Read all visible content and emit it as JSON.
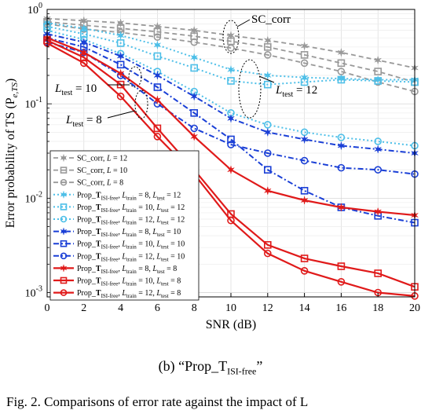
{
  "chart_data": {
    "type": "line",
    "xlabel": "SNR (dB)",
    "ylabel_main": "Error probability of TS (P",
    "ylabel_sub": "e,TS",
    "ylabel_end": ")",
    "x": [
      0,
      2,
      4,
      6,
      8,
      10,
      12,
      14,
      16,
      18,
      20
    ],
    "xlim": [
      0,
      20
    ],
    "ylim": [
      0.0009,
      1
    ],
    "yscale": "log",
    "xticks": [
      0,
      2,
      4,
      6,
      8,
      10,
      12,
      14,
      16,
      18,
      20
    ],
    "yticks": [
      {
        "value": 1,
        "base": "10",
        "exp": "0"
      },
      {
        "value": 0.1,
        "base": "10",
        "exp": "-1"
      },
      {
        "value": 0.01,
        "base": "10",
        "exp": "-2"
      },
      {
        "value": 0.001,
        "base": "10",
        "exp": "-3"
      }
    ],
    "series": [
      {
        "name": "SC_corr, L = 12",
        "color": "#999999",
        "dash": "6,4",
        "marker": "star",
        "width": 1.8,
        "values": [
          0.8,
          0.76,
          0.72,
          0.66,
          0.6,
          0.53,
          0.47,
          0.41,
          0.35,
          0.29,
          0.24
        ]
      },
      {
        "name": "SC_corr, L = 10",
        "color": "#999999",
        "dash": "6,4",
        "marker": "square",
        "width": 1.8,
        "values": [
          0.74,
          0.68,
          0.63,
          0.58,
          0.52,
          0.46,
          0.4,
          0.33,
          0.27,
          0.22,
          0.17
        ]
      },
      {
        "name": "SC_corr, L = 8",
        "color": "#999999",
        "dash": "6,4",
        "marker": "circle",
        "width": 1.8,
        "values": [
          0.7,
          0.62,
          0.57,
          0.51,
          0.45,
          0.39,
          0.33,
          0.27,
          0.22,
          0.17,
          0.135
        ]
      },
      {
        "name": "Prop_T ISI-free, L train = 8, L test = 12",
        "color": "#4dbfe8",
        "dash": "2,3",
        "marker": "star",
        "width": 2,
        "values": [
          0.72,
          0.63,
          0.53,
          0.42,
          0.31,
          0.23,
          0.2,
          0.19,
          0.185,
          0.18,
          0.18
        ]
      },
      {
        "name": "Prop_T ISI-free, L train = 10, L test = 12",
        "color": "#4dbfe8",
        "dash": "2,3",
        "marker": "square",
        "width": 2,
        "values": [
          0.66,
          0.55,
          0.44,
          0.32,
          0.24,
          0.175,
          0.16,
          0.17,
          0.18,
          0.175,
          0.17
        ]
      },
      {
        "name": "Prop_T ISI-free, L train = 12, L test = 12",
        "color": "#4dbfe8",
        "dash": "2,3",
        "marker": "circle",
        "width": 2,
        "values": [
          0.6,
          0.48,
          0.34,
          0.22,
          0.135,
          0.08,
          0.06,
          0.05,
          0.044,
          0.04,
          0.036
        ]
      },
      {
        "name": "Prop_T ISI-free, L train = 8, L test = 10",
        "color": "#1a3fd6",
        "dash": "7,3,2,3",
        "marker": "star",
        "width": 2,
        "values": [
          0.55,
          0.45,
          0.32,
          0.2,
          0.12,
          0.07,
          0.05,
          0.042,
          0.036,
          0.033,
          0.03
        ]
      },
      {
        "name": "Prop_T ISI-free, L train = 10, L test = 10",
        "color": "#1a3fd6",
        "dash": "7,3,2,3",
        "marker": "square",
        "width": 2,
        "values": [
          0.5,
          0.4,
          0.26,
          0.15,
          0.08,
          0.042,
          0.02,
          0.012,
          0.008,
          0.0065,
          0.0055
        ]
      },
      {
        "name": "Prop_T ISI-free, L train = 12, L test = 10",
        "color": "#1a3fd6",
        "dash": "7,3,2,3",
        "marker": "circle",
        "width": 2,
        "values": [
          0.45,
          0.35,
          0.2,
          0.1,
          0.055,
          0.037,
          0.03,
          0.025,
          0.021,
          0.02,
          0.018
        ]
      },
      {
        "name": "Prop_T ISI-free, L train = 8, L test = 8",
        "color": "#e01a1a",
        "dash": "",
        "marker": "star",
        "width": 2.2,
        "values": [
          0.5,
          0.35,
          0.21,
          0.11,
          0.045,
          0.02,
          0.012,
          0.0095,
          0.008,
          0.0072,
          0.0066
        ]
      },
      {
        "name": "Prop_T ISI-free, L train = 10, L test = 8",
        "color": "#e01a1a",
        "dash": "",
        "marker": "square",
        "width": 2.2,
        "values": [
          0.47,
          0.31,
          0.16,
          0.055,
          0.02,
          0.0068,
          0.0032,
          0.0023,
          0.0019,
          0.0016,
          0.00115
        ]
      },
      {
        "name": "Prop_T ISI-free, L train = 12, L test = 8",
        "color": "#e01a1a",
        "dash": "",
        "marker": "circle",
        "width": 2.2,
        "values": [
          0.44,
          0.27,
          0.12,
          0.045,
          0.018,
          0.0058,
          0.0026,
          0.0017,
          0.0013,
          0.001,
          0.00092
        ]
      }
    ],
    "legend": {
      "placement": "bottom-left",
      "entries": [
        {
          "pre": "SC_corr, ",
          "L": "L",
          "mid": " = 12"
        },
        {
          "pre": "SC_corr, ",
          "L": "L",
          "mid": " = 10"
        },
        {
          "pre": "SC_corr, ",
          "L": "L",
          "mid": " = 8"
        },
        {
          "pre": "Prop_",
          "bold": "T",
          "sub1": "ISI-free",
          "a": ", ",
          "L1": "L",
          "s1": "train",
          "v1": " = 8, ",
          "L2": "L",
          "s2": "test",
          "v2": " = 12"
        },
        {
          "pre": "Prop_",
          "bold": "T",
          "sub1": "ISI-free",
          "a": ", ",
          "L1": "L",
          "s1": "train",
          "v1": " = 10, ",
          "L2": "L",
          "s2": "test",
          "v2": " = 12"
        },
        {
          "pre": "Prop_",
          "bold": "T",
          "sub1": "ISI-free",
          "a": ", ",
          "L1": "L",
          "s1": "train",
          "v1": " = 12, ",
          "L2": "L",
          "s2": "test",
          "v2": " = 12"
        },
        {
          "pre": "Prop_",
          "bold": "T",
          "sub1": "ISI-free",
          "a": ", ",
          "L1": "L",
          "s1": "train",
          "v1": " = 8, ",
          "L2": "L",
          "s2": "test",
          "v2": " = 10"
        },
        {
          "pre": "Prop_",
          "bold": "T",
          "sub1": "ISI-free",
          "a": ", ",
          "L1": "L",
          "s1": "train",
          "v1": " = 10, ",
          "L2": "L",
          "s2": "test",
          "v2": " = 10"
        },
        {
          "pre": "Prop_",
          "bold": "T",
          "sub1": "ISI-free",
          "a": ", ",
          "L1": "L",
          "s1": "train",
          "v1": " = 12, ",
          "L2": "L",
          "s2": "test",
          "v2": " = 10"
        },
        {
          "pre": "Prop_",
          "bold": "T",
          "sub1": "ISI-free",
          "a": ", ",
          "L1": "L",
          "s1": "train",
          "v1": " = 8, ",
          "L2": "L",
          "s2": "test",
          "v2": " = 8"
        },
        {
          "pre": "Prop_",
          "bold": "T",
          "sub1": "ISI-free",
          "a": ", ",
          "L1": "L",
          "s1": "train",
          "v1": " = 10, ",
          "L2": "L",
          "s2": "test",
          "v2": " = 8"
        },
        {
          "pre": "Prop_",
          "bold": "T",
          "sub1": "ISI-free",
          "a": ", ",
          "L1": "L",
          "s1": "train",
          "v1": " = 12, ",
          "L2": "L",
          "s2": "test",
          "v2": " = 8"
        }
      ]
    },
    "annotations": [
      {
        "text": "SC_corr",
        "type": "plain"
      },
      {
        "L": "L",
        "sub": "test",
        "val": " = 10"
      },
      {
        "L": "L",
        "sub": "test",
        "val": " = 12"
      },
      {
        "L": "L",
        "sub": "test",
        "val": " = 8"
      }
    ]
  },
  "caption": {
    "prefix": "(b)  “Prop_T",
    "sub": "ISI-free",
    "suffix": "”"
  },
  "figure_line": "Fig. 2.   Comparisons of error rate against the impact of  L"
}
